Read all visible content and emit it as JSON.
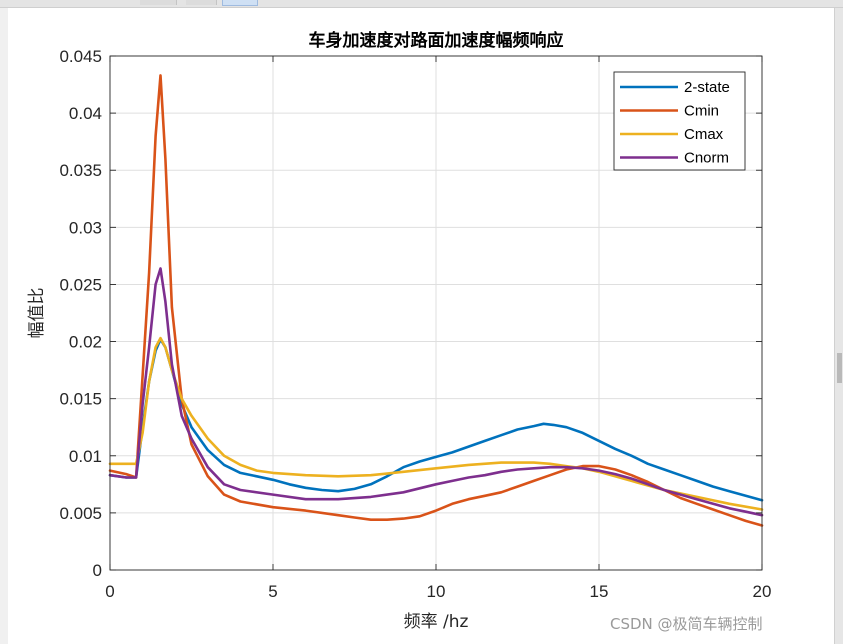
{
  "watermark": "CSDN @极简车辆控制",
  "chart_data": {
    "type": "line",
    "title": "车身加速度对路面加速度幅频响应",
    "xlabel": "频率 /hz",
    "ylabel": "幅值比",
    "xlim": [
      0,
      20
    ],
    "ylim": [
      0,
      0.045
    ],
    "xticks": [
      0,
      5,
      10,
      15,
      20
    ],
    "xtick_labels": [
      "0",
      "5",
      "10",
      "15",
      "20"
    ],
    "yticks": [
      0,
      0.005,
      0.01,
      0.015,
      0.02,
      0.025,
      0.03,
      0.035,
      0.04,
      0.045
    ],
    "ytick_labels": [
      "0",
      "0.005",
      "0.01",
      "0.015",
      "0.02",
      "0.025",
      "0.03",
      "0.035",
      "0.04",
      "0.045"
    ],
    "grid": true,
    "legend_position": "top-right",
    "series": [
      {
        "name": "2-state",
        "color": "#0072BD",
        "x": [
          0,
          0.5,
          0.8,
          1.0,
          1.2,
          1.4,
          1.55,
          1.7,
          1.9,
          2.2,
          2.5,
          3.0,
          3.5,
          4.0,
          4.5,
          5.0,
          5.5,
          6.0,
          6.5,
          7.0,
          7.5,
          8.0,
          8.5,
          9.0,
          9.5,
          10.0,
          10.5,
          11.0,
          11.5,
          12.0,
          12.5,
          13.0,
          13.3,
          13.6,
          14.0,
          14.5,
          15.0,
          15.5,
          16.0,
          16.5,
          17.0,
          17.5,
          18.0,
          18.5,
          19.0,
          19.5,
          20.0
        ],
        "y": [
          0.0083,
          0.0081,
          0.0081,
          0.0125,
          0.0165,
          0.0192,
          0.0202,
          0.0195,
          0.0175,
          0.0145,
          0.0125,
          0.0105,
          0.0092,
          0.0085,
          0.0082,
          0.0079,
          0.0075,
          0.0072,
          0.007,
          0.0069,
          0.0071,
          0.0075,
          0.0082,
          0.009,
          0.0095,
          0.0099,
          0.0103,
          0.0108,
          0.0113,
          0.0118,
          0.0123,
          0.0126,
          0.0128,
          0.0127,
          0.0125,
          0.012,
          0.0113,
          0.0106,
          0.01,
          0.0093,
          0.0088,
          0.0083,
          0.0078,
          0.0073,
          0.0069,
          0.0065,
          0.0061
        ]
      },
      {
        "name": "Cmin",
        "color": "#D95319",
        "x": [
          0,
          0.5,
          0.8,
          1.0,
          1.2,
          1.4,
          1.55,
          1.7,
          1.9,
          2.2,
          2.5,
          3.0,
          3.5,
          4.0,
          5.0,
          6.0,
          7.0,
          7.5,
          8.0,
          8.5,
          9.0,
          9.5,
          10.0,
          10.5,
          11.0,
          11.5,
          12.0,
          12.5,
          13.0,
          13.5,
          14.0,
          14.5,
          15.0,
          15.5,
          16.0,
          16.5,
          17.0,
          17.5,
          18.0,
          18.5,
          19.0,
          19.5,
          20.0
        ],
        "y": [
          0.0087,
          0.0084,
          0.0081,
          0.017,
          0.026,
          0.038,
          0.0433,
          0.036,
          0.023,
          0.015,
          0.011,
          0.0082,
          0.0066,
          0.006,
          0.0055,
          0.0052,
          0.0048,
          0.0046,
          0.0044,
          0.0044,
          0.0045,
          0.0047,
          0.0052,
          0.0058,
          0.0062,
          0.0065,
          0.0068,
          0.0073,
          0.0078,
          0.0083,
          0.0088,
          0.0091,
          0.0091,
          0.0088,
          0.0083,
          0.0077,
          0.007,
          0.0063,
          0.0058,
          0.0053,
          0.0048,
          0.0043,
          0.0039
        ]
      },
      {
        "name": "Cmax",
        "color": "#EDB120",
        "x": [
          0,
          0.5,
          0.8,
          1.0,
          1.2,
          1.4,
          1.55,
          1.7,
          1.9,
          2.2,
          2.5,
          3.0,
          3.5,
          4.0,
          4.5,
          5.0,
          6.0,
          7.0,
          8.0,
          9.0,
          10.0,
          11.0,
          12.0,
          12.5,
          13.0,
          13.5,
          14.0,
          14.5,
          15.0,
          16.0,
          17.0,
          18.0,
          19.0,
          20.0
        ],
        "y": [
          0.0093,
          0.0093,
          0.0093,
          0.012,
          0.0165,
          0.0195,
          0.0203,
          0.0195,
          0.0175,
          0.015,
          0.0135,
          0.0115,
          0.01,
          0.0092,
          0.0087,
          0.0085,
          0.0083,
          0.0082,
          0.0083,
          0.0086,
          0.0089,
          0.0092,
          0.0094,
          0.0094,
          0.0094,
          0.0093,
          0.0091,
          0.0089,
          0.0086,
          0.0078,
          0.007,
          0.0064,
          0.0058,
          0.0053
        ]
      },
      {
        "name": "Cnorm",
        "color": "#7E2F8E",
        "x": [
          0,
          0.5,
          0.8,
          1.0,
          1.2,
          1.4,
          1.55,
          1.7,
          1.9,
          2.2,
          2.5,
          3.0,
          3.5,
          4.0,
          5.0,
          6.0,
          7.0,
          8.0,
          9.0,
          10.0,
          10.5,
          11.0,
          11.5,
          12.0,
          12.5,
          13.0,
          13.5,
          14.0,
          14.5,
          15.0,
          15.5,
          16.0,
          16.5,
          17.0,
          17.5,
          18.0,
          18.5,
          19.0,
          19.5,
          20.0
        ],
        "y": [
          0.0083,
          0.0081,
          0.0081,
          0.0145,
          0.0195,
          0.025,
          0.0264,
          0.0235,
          0.018,
          0.0135,
          0.0115,
          0.009,
          0.0075,
          0.007,
          0.0066,
          0.0062,
          0.0062,
          0.0064,
          0.0068,
          0.0075,
          0.0078,
          0.0081,
          0.0083,
          0.0086,
          0.0088,
          0.0089,
          0.009,
          0.009,
          0.0089,
          0.0087,
          0.0084,
          0.008,
          0.0075,
          0.007,
          0.0066,
          0.0062,
          0.0058,
          0.0054,
          0.0051,
          0.0048
        ]
      }
    ]
  }
}
